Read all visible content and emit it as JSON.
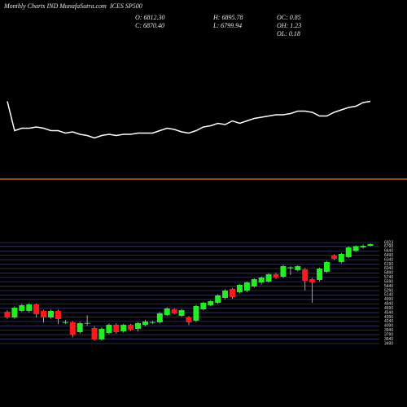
{
  "chart_data": [
    {
      "type": "candlestick",
      "title": "Monthly Charts IND  MunafaSutra.com",
      "symbol": "ICES SP500",
      "info_labels": [
        "O: 6812.30",
        "C: 6870.40",
        "H: 6895.78",
        "L: 6799.94",
        "OC: 0.85",
        "OH: 1.23",
        "OL: 0.18"
      ],
      "up_color": "#22ee22",
      "down_color": "#ff1a1a",
      "grid_color": "#34346e",
      "grid": true,
      "ylim": [
        3490,
        6923
      ],
      "yticks": [
        6923,
        6790,
        6640,
        6490,
        6340,
        6190,
        6040,
        5890,
        5740,
        5590,
        5440,
        5290,
        5140,
        4990,
        4840,
        4690,
        4540,
        4390,
        4240,
        4090,
        3940,
        3790,
        3640,
        3490
      ],
      "open": [
        4570,
        4376,
        4598,
        4598,
        4820,
        4598,
        4376,
        4598,
        4210,
        4210,
        3878,
        4183,
        4016,
        3629,
        3850,
        4127,
        3906,
        4127,
        3989,
        4127,
        4210,
        4210,
        4460,
        4653,
        4432,
        4376,
        4266,
        4653,
        4792,
        4875,
        5041,
        5346,
        5235,
        5291,
        5429,
        5568,
        5595,
        5845,
        5761,
        6066,
        5983,
        6011,
        5678,
        5651,
        5928,
        6482,
        6260,
        6426,
        6640,
        6760,
        6812.3
      ],
      "high": [
        4620,
        4750,
        4830,
        4860,
        4850,
        4640,
        4640,
        4640,
        4290,
        4250,
        4230,
        4450,
        4080,
        4040,
        4170,
        4170,
        4160,
        4160,
        4220,
        4290,
        4260,
        4560,
        4720,
        4690,
        4660,
        4420,
        4800,
        4910,
        4960,
        5160,
        5330,
        5380,
        5510,
        5600,
        5710,
        5770,
        5880,
        5890,
        6160,
        6120,
        6150,
        6050,
        5720,
        6070,
        6300,
        6520,
        6570,
        6790,
        6830,
        6860,
        6895.78
      ],
      "low": [
        4330,
        4330,
        4560,
        4550,
        4380,
        4200,
        4330,
        4150,
        4150,
        3700,
        3830,
        4100,
        3590,
        3590,
        3800,
        3830,
        3860,
        3920,
        3900,
        4080,
        4150,
        4170,
        4420,
        4480,
        4400,
        4120,
        4220,
        4620,
        4760,
        4840,
        5000,
        5010,
        5190,
        5240,
        5390,
        5500,
        5560,
        5690,
        5720,
        5820,
        5940,
        5300,
        4875,
        5600,
        5890,
        6330,
        6220,
        6390,
        6600,
        6720,
        6799.94
      ],
      "close": [
        4376,
        4709,
        4792,
        4820,
        4487,
        4376,
        4598,
        4321,
        4220,
        3795,
        4183,
        4190,
        3629,
        3989,
        4127,
        3878,
        4127,
        3961,
        4183,
        4238,
        4220,
        4515,
        4681,
        4515,
        4626,
        4210,
        4764,
        4875,
        4930,
        5124,
        5291,
        5069,
        5484,
        5568,
        5678,
        5734,
        5845,
        5734,
        6122,
        6080,
        6122,
        5623,
        5568,
        6038,
        6260,
        6371,
        6537,
        6759,
        6800,
        6812,
        6870.4
      ]
    },
    {
      "type": "line",
      "color": "#ffffff",
      "ylim": [
        0,
        100
      ],
      "values": [
        57,
        33,
        35,
        35,
        36,
        35,
        33,
        33,
        31,
        32,
        30,
        29,
        27,
        29,
        30,
        29,
        30,
        30,
        31,
        31,
        31,
        33,
        35,
        34,
        32,
        31,
        33,
        36,
        37,
        39,
        38,
        41,
        39,
        41,
        43,
        44,
        45,
        46,
        46,
        47,
        49,
        49,
        48,
        45,
        45,
        48,
        50,
        52,
        53,
        56,
        57
      ]
    }
  ]
}
